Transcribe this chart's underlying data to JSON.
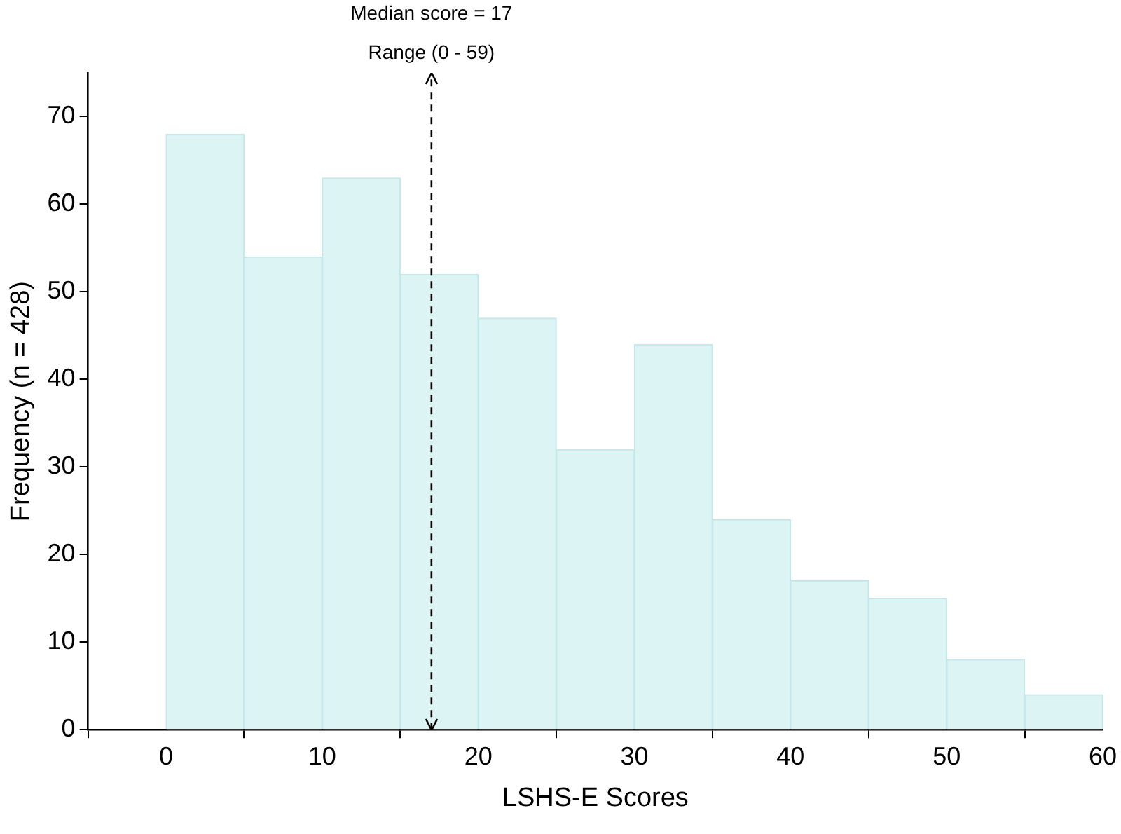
{
  "chart_data": {
    "type": "histogram",
    "xlabel": "LSHS-E Scores",
    "ylabel": "Frequency (n = 428)",
    "bins": [
      0,
      5,
      10,
      15,
      20,
      25,
      30,
      35,
      40,
      45,
      50,
      55,
      60
    ],
    "values": [
      68,
      54,
      63,
      52,
      47,
      32,
      44,
      24,
      17,
      15,
      8,
      4
    ],
    "color": "#dcf4f4",
    "xlim": [
      -5,
      60
    ],
    "xticks": [
      0,
      10,
      20,
      30,
      40,
      50,
      60
    ],
    "ylim": [
      0,
      75
    ],
    "yticks": [
      0,
      10,
      20,
      30,
      40,
      50,
      60,
      70
    ],
    "grid": false,
    "legend": false,
    "ref_lines": [
      {
        "axis": "x",
        "value": 17,
        "label": "Median score = 17",
        "color": "#000000",
        "line_style": "dashed"
      }
    ],
    "annotations": [
      "Range (0 - 59)"
    ]
  }
}
